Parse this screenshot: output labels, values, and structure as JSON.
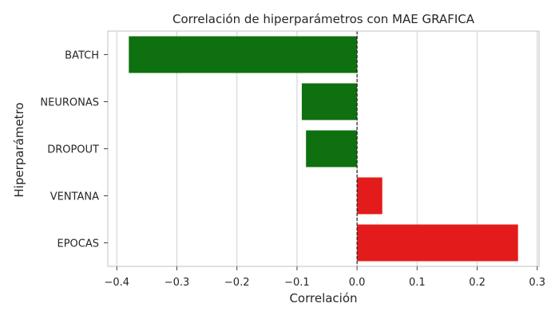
{
  "chart_data": {
    "type": "bar",
    "orientation": "horizontal",
    "title": "Correlación de hiperparámetros con MAE GRAFICA",
    "xlabel": "Correlación",
    "ylabel": "Hiperparámetro",
    "categories": [
      "BATCH",
      "NEURONAS",
      "DROPOUT",
      "VENTANA",
      "EPOCAS"
    ],
    "values": [
      -0.38,
      -0.092,
      -0.085,
      0.042,
      0.268
    ],
    "xlim": [
      -0.415,
      0.303
    ],
    "xticks": [
      -0.4,
      -0.3,
      -0.2,
      -0.1,
      0.0,
      0.1,
      0.2,
      0.3
    ],
    "xtick_labels": [
      "−0.4",
      "−0.3",
      "−0.2",
      "−0.1",
      "0.0",
      "0.1",
      "0.2",
      "0.3"
    ],
    "grid": "x",
    "reference_line": {
      "x": 0,
      "style": "dashed",
      "color": "#222222"
    },
    "colors": {
      "negative": "#0e700e",
      "positive": "#e31b1b"
    },
    "legend": "none"
  }
}
